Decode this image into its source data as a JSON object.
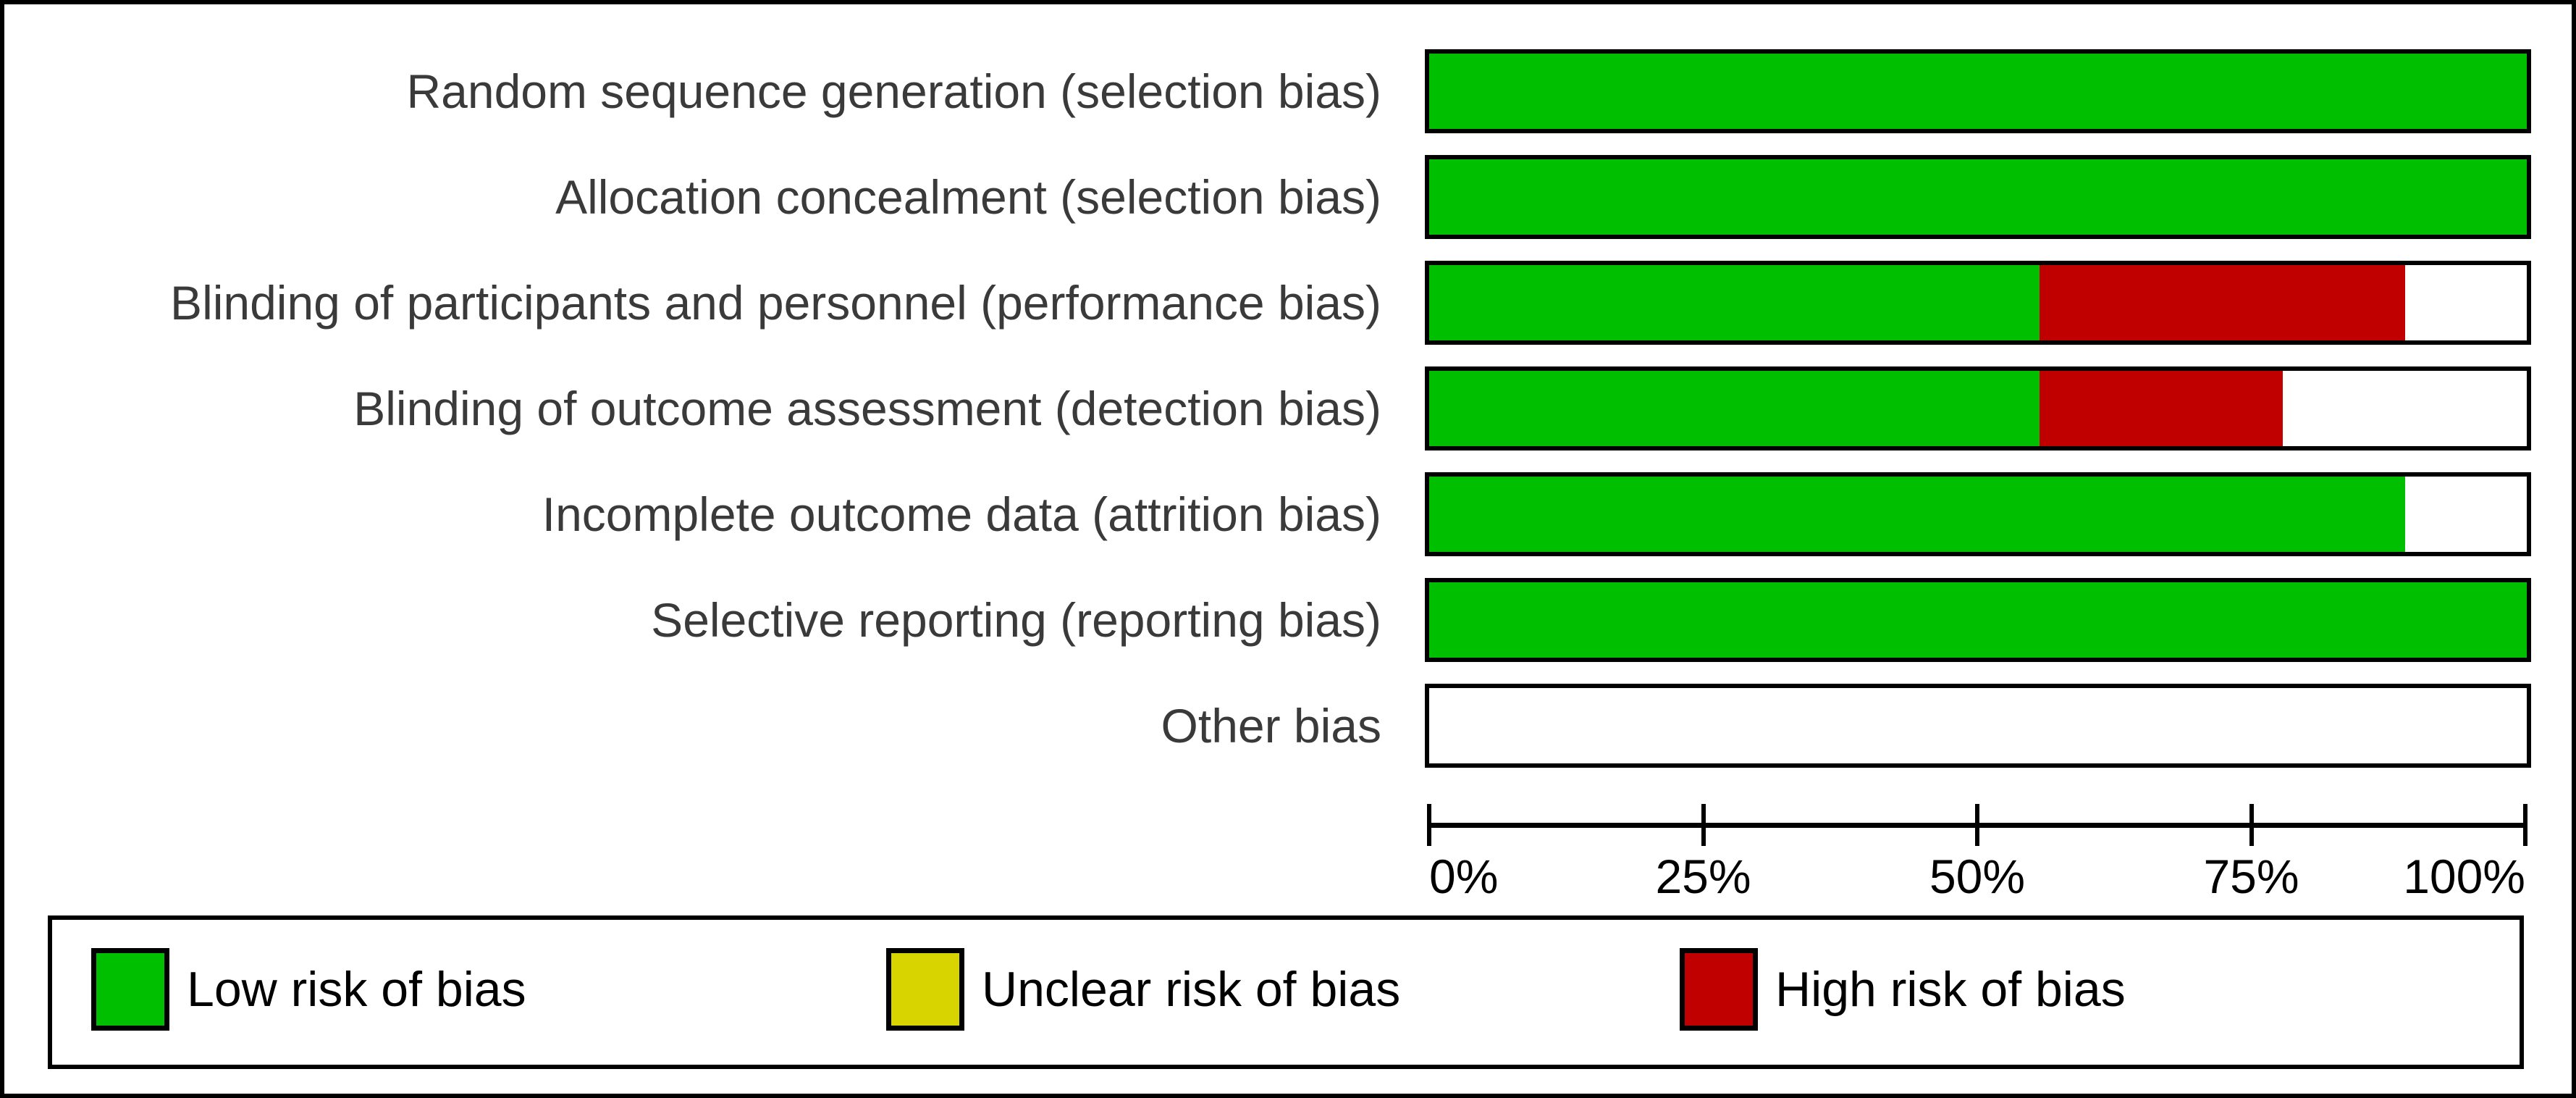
{
  "chart_data": {
    "type": "bar",
    "variant": "horizontal_stacked_percent",
    "title": "",
    "xlabel": "",
    "ylabel": "",
    "categories": [
      "Random sequence generation (selection bias)",
      "Allocation concealment (selection bias)",
      "Blinding of participants and personnel (performance bias)",
      "Blinding of outcome assessment (detection bias)",
      "Incomplete outcome data (attrition bias)",
      "Selective reporting (reporting bias)",
      "Other bias"
    ],
    "series": [
      {
        "name": "Low risk of bias",
        "color": "#00be00",
        "values": [
          100,
          100,
          55.6,
          55.6,
          88.9,
          100,
          0
        ]
      },
      {
        "name": "Unclear risk of bias",
        "color": "#d8d400",
        "values": [
          0,
          0,
          0,
          0,
          0,
          0,
          0
        ]
      },
      {
        "name": "High risk of bias",
        "color": "#c00000",
        "values": [
          0,
          0,
          33.3,
          22.2,
          0,
          0,
          0
        ]
      }
    ],
    "x_axis": {
      "range": [
        0,
        100
      ],
      "tick_values": [
        0,
        25,
        50,
        75,
        100
      ],
      "tick_labels": [
        "0%",
        "25%",
        "50%",
        "75%",
        "100%"
      ],
      "grid": false
    },
    "legend": {
      "position": "bottom",
      "entries": [
        {
          "label": "Low risk of bias",
          "color": "#00be00"
        },
        {
          "label": "Unclear risk of bias",
          "color": "#d8d400"
        },
        {
          "label": "High risk of bias",
          "color": "#c00000"
        }
      ]
    }
  }
}
